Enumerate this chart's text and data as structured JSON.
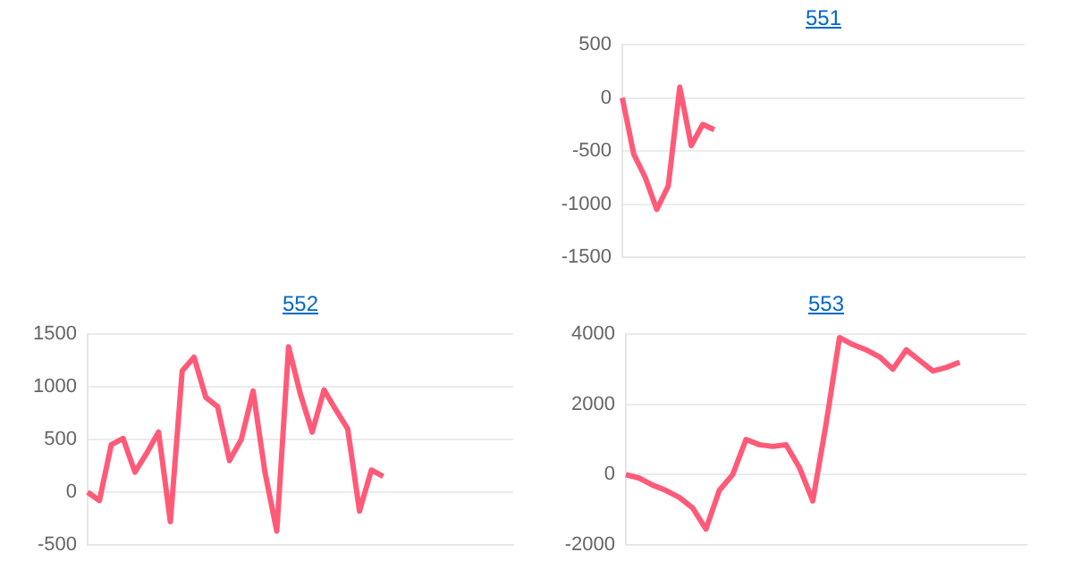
{
  "chart_data": [
    {
      "type": "line",
      "title": "551",
      "categories": [
        null,
        null,
        null,
        null,
        null,
        null,
        null,
        null,
        null,
        null,
        null,
        null,
        null,
        null,
        null,
        null,
        null,
        null,
        null,
        null,
        null,
        null,
        null,
        null,
        null,
        null,
        null,
        null,
        null,
        null,
        null,
        null,
        null,
        null,
        null,
        null
      ],
      "series": [
        {
          "color": "#ff5a78",
          "values": [
            0,
            -530,
            -750,
            -1050,
            -830,
            100,
            -450,
            -250,
            -300,
            null,
            null,
            null,
            null,
            null,
            null,
            null,
            null,
            null,
            null,
            null,
            null,
            null,
            null,
            null,
            null,
            null,
            null,
            null,
            null,
            null,
            null,
            null,
            null,
            null,
            null,
            null
          ]
        }
      ],
      "ylim": [
        -1500,
        500
      ],
      "yticks": [
        -1500,
        -1000,
        -500,
        0,
        500
      ],
      "grid": "y",
      "tick_labels": "y",
      "marker": "none",
      "legend": false
    },
    {
      "type": "line",
      "title": "552",
      "categories": [
        null,
        null,
        null,
        null,
        null,
        null,
        null,
        null,
        null,
        null,
        null,
        null,
        null,
        null,
        null,
        null,
        null,
        null,
        null,
        null,
        null,
        null,
        null,
        null,
        null,
        null,
        null,
        null,
        null,
        null,
        null,
        null,
        null,
        null,
        null,
        null,
        null
      ],
      "series": [
        {
          "color": "#ff5a78",
          "values": [
            0,
            -80,
            450,
            510,
            190,
            370,
            570,
            -280,
            1150,
            1280,
            900,
            810,
            300,
            500,
            960,
            190,
            -370,
            1380,
            930,
            570,
            970,
            780,
            600,
            -180,
            210,
            150,
            null,
            null,
            null,
            null,
            null,
            null,
            null,
            null,
            null,
            null,
            null
          ]
        }
      ],
      "ylim": [
        -500,
        1500
      ],
      "yticks": [
        -500,
        0,
        500,
        1000,
        1500
      ],
      "grid": "y",
      "tick_labels": "y",
      "marker": "none",
      "legend": false
    },
    {
      "type": "line",
      "title": "553",
      "categories": [
        null,
        null,
        null,
        null,
        null,
        null,
        null,
        null,
        null,
        null,
        null,
        null,
        null,
        null,
        null,
        null,
        null,
        null,
        null,
        null,
        null,
        null,
        null,
        null,
        null,
        null,
        null,
        null,
        null,
        null,
        null
      ],
      "series": [
        {
          "color": "#ff5a78",
          "values": [
            0,
            -100,
            -300,
            -450,
            -650,
            -950,
            -1550,
            -450,
            0,
            1000,
            850,
            800,
            850,
            200,
            -750,
            1450,
            3900,
            3700,
            3550,
            3350,
            3000,
            3550,
            3250,
            2950,
            3050,
            3200,
            null,
            null,
            null,
            null,
            null
          ]
        }
      ],
      "ylim": [
        -2000,
        4000
      ],
      "yticks": [
        -2000,
        0,
        2000,
        4000
      ],
      "grid": "y",
      "tick_labels": "y",
      "marker": "none",
      "legend": false
    }
  ]
}
